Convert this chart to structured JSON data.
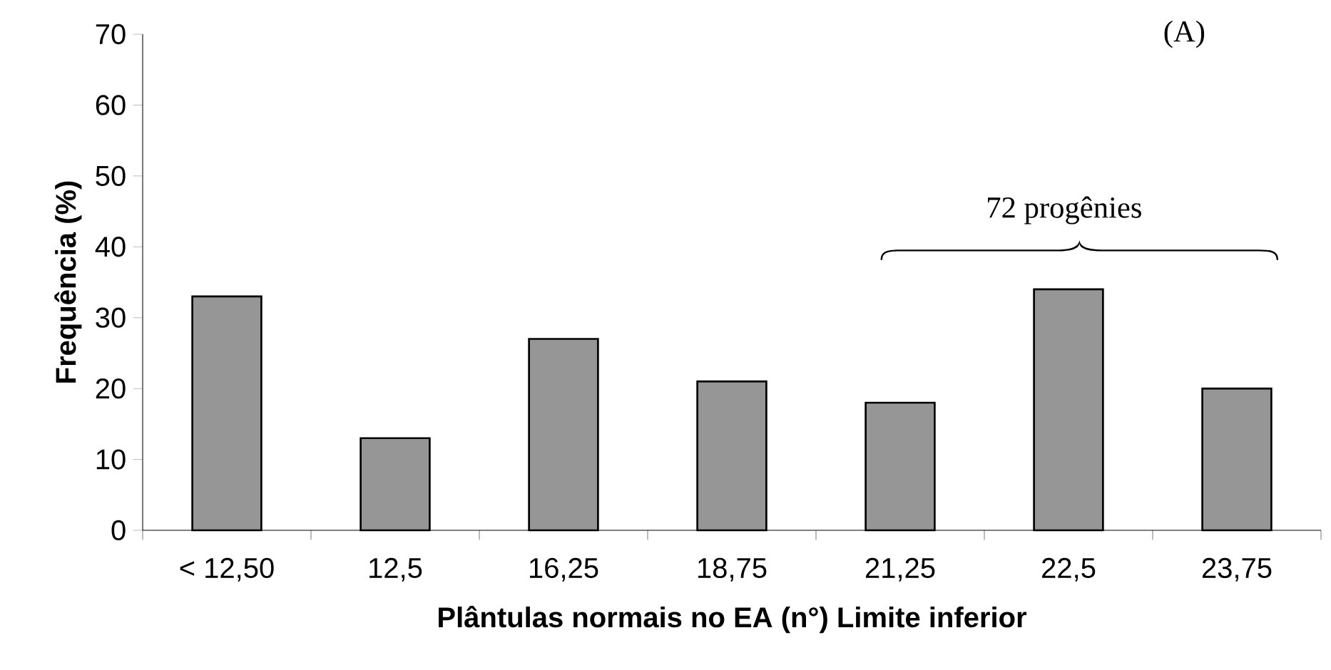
{
  "chart_data": {
    "type": "bar",
    "xlabel": "Plântulas normais no EA (n°) Limite inferior",
    "ylabel": "Frequência (%)",
    "categories": [
      "< 12,50",
      "12,5",
      "16,25",
      "18,75",
      "21,25",
      "22,5",
      "23,75"
    ],
    "values": [
      33,
      13,
      27,
      21,
      18,
      34,
      20
    ],
    "color": "#969696",
    "ylim": [
      0,
      70
    ],
    "yticks": [
      0,
      10,
      20,
      30,
      40,
      50,
      60,
      70
    ],
    "grid": false,
    "annotations": [
      "(A)",
      "72 progênies"
    ]
  }
}
